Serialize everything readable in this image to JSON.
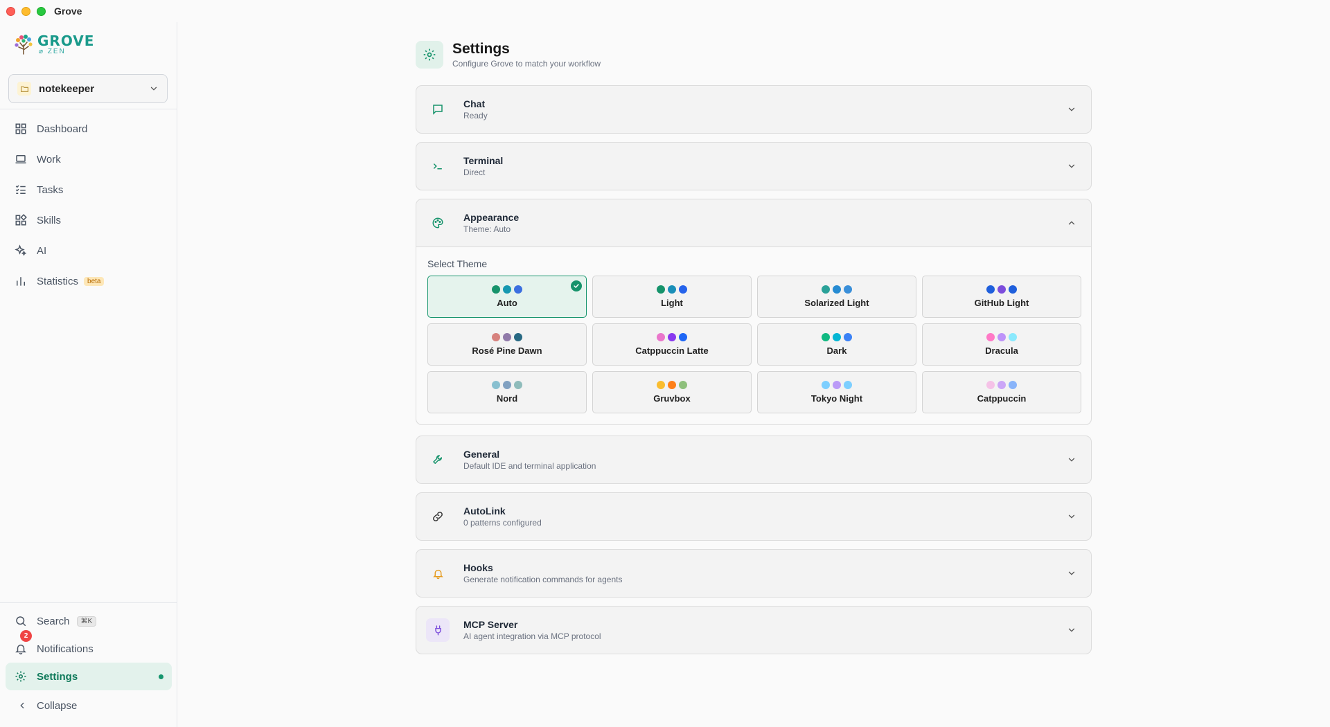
{
  "window": {
    "title": "Grove"
  },
  "sidebar": {
    "logo": {
      "word": "GROVE",
      "sub": "ZEN"
    },
    "project": {
      "name": "notekeeper"
    },
    "nav": [
      {
        "label": "Dashboard",
        "icon": "dashboard-icon"
      },
      {
        "label": "Work",
        "icon": "laptop-icon"
      },
      {
        "label": "Tasks",
        "icon": "tasks-icon"
      },
      {
        "label": "Skills",
        "icon": "skills-icon"
      },
      {
        "label": "AI",
        "icon": "sparkles-icon"
      },
      {
        "label": "Statistics",
        "icon": "bar-chart-icon",
        "badge": "beta"
      }
    ],
    "bottom": {
      "search": {
        "label": "Search",
        "shortcut": "⌘K"
      },
      "notifications": {
        "label": "Notifications",
        "count": "2"
      },
      "settings": {
        "label": "Settings"
      },
      "collapse": {
        "label": "Collapse"
      }
    }
  },
  "page": {
    "title": "Settings",
    "subtitle": "Configure Grove to match your workflow"
  },
  "sections": {
    "chat": {
      "title": "Chat",
      "subtitle": "Ready",
      "icon": "message-icon"
    },
    "terminal": {
      "title": "Terminal",
      "subtitle": "Direct",
      "icon": "terminal-icon"
    },
    "appearance": {
      "title": "Appearance",
      "subtitle": "Theme: Auto",
      "icon": "palette-icon",
      "select_label": "Select Theme",
      "themes": [
        {
          "name": "Auto",
          "colors": [
            "#16936b",
            "#1598b0",
            "#3b6fe0"
          ],
          "selected": true
        },
        {
          "name": "Light",
          "colors": [
            "#16936b",
            "#1a8fb8",
            "#2563eb"
          ]
        },
        {
          "name": "Solarized Light",
          "colors": [
            "#2aa198",
            "#268bd2",
            "#3a8fd9"
          ]
        },
        {
          "name": "GitHub Light",
          "colors": [
            "#1f5fdc",
            "#7c4ddc",
            "#1f5fdc"
          ]
        },
        {
          "name": "Rosé Pine Dawn",
          "colors": [
            "#d7827e",
            "#907aa9",
            "#286983"
          ]
        },
        {
          "name": "Catppuccin Latte",
          "colors": [
            "#ea76cb",
            "#8839ef",
            "#1e66f5"
          ]
        },
        {
          "name": "Dark",
          "colors": [
            "#10b981",
            "#06b6d4",
            "#3b82f6"
          ]
        },
        {
          "name": "Dracula",
          "colors": [
            "#ff79c6",
            "#bd93f9",
            "#8be9fd"
          ]
        },
        {
          "name": "Nord",
          "colors": [
            "#88c0d0",
            "#81a1c1",
            "#8fbcbb"
          ]
        },
        {
          "name": "Gruvbox",
          "colors": [
            "#fabd2f",
            "#fe8019",
            "#8ec07c"
          ]
        },
        {
          "name": "Tokyo Night",
          "colors": [
            "#7dcfff",
            "#bb9af7",
            "#7dcfff"
          ]
        },
        {
          "name": "Catppuccin",
          "colors": [
            "#f5c2e7",
            "#cba6f7",
            "#89b4fa"
          ]
        }
      ]
    },
    "general": {
      "title": "General",
      "subtitle": "Default IDE and terminal application",
      "icon": "wrench-icon"
    },
    "autolink": {
      "title": "AutoLink",
      "subtitle": "0 patterns configured",
      "icon": "link-icon"
    },
    "hooks": {
      "title": "Hooks",
      "subtitle": "Generate notification commands for agents",
      "icon": "bell-icon"
    },
    "mcp": {
      "title": "MCP Server",
      "subtitle": "AI agent integration via MCP protocol",
      "icon": "plug-icon"
    }
  },
  "colors": {
    "accent": "#16936b",
    "accent_bg": "#e3f2ec",
    "badge": "#ef4444"
  }
}
